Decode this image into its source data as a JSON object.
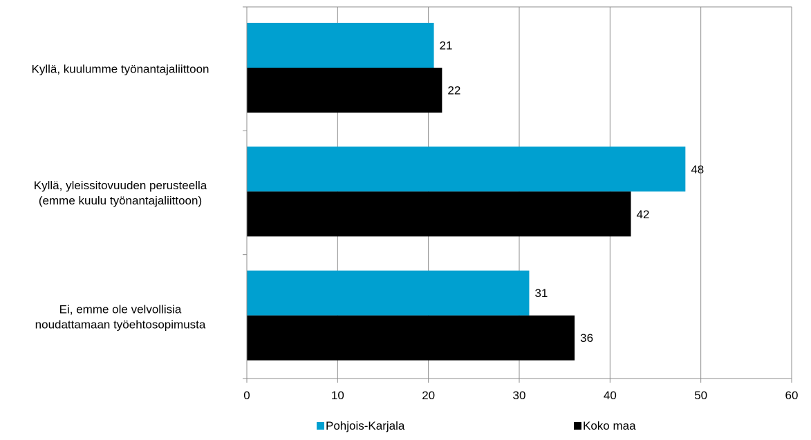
{
  "chart_data": {
    "type": "bar",
    "orientation": "horizontal",
    "categories": [
      [
        "Kyllä, kuulumme työnantajaliittoon"
      ],
      [
        "Kyllä, yleissitovuuden perusteella",
        "(emme kuulu työnantajaliittoon)"
      ],
      [
        "Ei, emme ole velvollisia",
        "noudattamaan työehtosopimusta"
      ]
    ],
    "series": [
      {
        "name": "Pohjois-Karjala",
        "values": [
          21,
          48,
          31
        ],
        "color": "#00A0D0"
      },
      {
        "name": "Koko maa",
        "values": [
          22,
          42,
          36
        ],
        "color": "#000000"
      }
    ],
    "bar_extent": [
      [
        20.6,
        21.5
      ],
      [
        48.3,
        42.3
      ],
      [
        31.1,
        36.1
      ]
    ],
    "xlim": [
      0,
      60
    ],
    "xticks": [
      0,
      10,
      20,
      30,
      40,
      50,
      60
    ],
    "grid": true,
    "legend_position": "bottom",
    "title": "",
    "xlabel": "",
    "ylabel": ""
  }
}
